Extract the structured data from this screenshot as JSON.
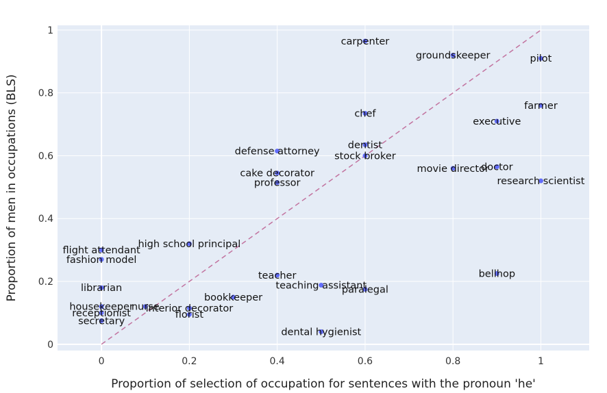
{
  "chart_data": {
    "type": "scatter",
    "xlabel": "Proportion of selection of occupation for sentences with the pronoun 'he'",
    "ylabel": "Proportion of men in occupations (BLS)",
    "xlim": [
      -0.1,
      1.11
    ],
    "ylim": [
      -0.02,
      1.015
    ],
    "x_ticks": [
      0,
      0.2,
      0.4,
      0.6,
      0.8,
      1
    ],
    "y_ticks": [
      0,
      0.2,
      0.4,
      0.6,
      0.8,
      1
    ],
    "x_tick_labels": [
      "0",
      "0.2",
      "0.4",
      "0.6",
      "0.8",
      "1"
    ],
    "y_tick_labels": [
      "0",
      "0.2",
      "0.4",
      "0.6",
      "0.8",
      "1"
    ],
    "grid": true,
    "background_color": "#e5ecf6",
    "marker_color": "#636efa",
    "reference_line": {
      "from": [
        0,
        0
      ],
      "to": [
        1,
        1
      ],
      "style": "dashed",
      "color": "#c2739f"
    },
    "points": [
      {
        "label": "carpenter",
        "x": 0.6,
        "y": 0.965
      },
      {
        "label": "groundskeeper",
        "x": 0.8,
        "y": 0.92
      },
      {
        "label": "pilot",
        "x": 1.0,
        "y": 0.91
      },
      {
        "label": "farmer",
        "x": 1.0,
        "y": 0.76
      },
      {
        "label": "executive",
        "x": 0.9,
        "y": 0.71
      },
      {
        "label": "chef",
        "x": 0.6,
        "y": 0.735
      },
      {
        "label": "dentist",
        "x": 0.6,
        "y": 0.635
      },
      {
        "label": "stock broker",
        "x": 0.6,
        "y": 0.6
      },
      {
        "label": "defense attorney",
        "x": 0.4,
        "y": 0.615
      },
      {
        "label": "cake decorator",
        "x": 0.4,
        "y": 0.545
      },
      {
        "label": "professor",
        "x": 0.4,
        "y": 0.515
      },
      {
        "label": "movie director",
        "x": 0.8,
        "y": 0.56
      },
      {
        "label": "doctor",
        "x": 0.9,
        "y": 0.565
      },
      {
        "label": "research scientist",
        "x": 1.0,
        "y": 0.52
      },
      {
        "label": "high school principal",
        "x": 0.2,
        "y": 0.32
      },
      {
        "label": "flight attendant",
        "x": 0.0,
        "y": 0.3
      },
      {
        "label": "fashion model",
        "x": 0.0,
        "y": 0.27
      },
      {
        "label": "librarian",
        "x": 0.0,
        "y": 0.18
      },
      {
        "label": "housekeeper",
        "x": 0.0,
        "y": 0.12
      },
      {
        "label": "receptionist",
        "x": 0.0,
        "y": 0.1
      },
      {
        "label": "secretary",
        "x": 0.0,
        "y": 0.075
      },
      {
        "label": "nurse",
        "x": 0.1,
        "y": 0.12
      },
      {
        "label": "interior decorator",
        "x": 0.2,
        "y": 0.115
      },
      {
        "label": "florist",
        "x": 0.2,
        "y": 0.095
      },
      {
        "label": "bookkeeper",
        "x": 0.3,
        "y": 0.15
      },
      {
        "label": "teacher",
        "x": 0.4,
        "y": 0.22
      },
      {
        "label": "teaching assistant",
        "x": 0.5,
        "y": 0.188
      },
      {
        "label": "paralegal",
        "x": 0.6,
        "y": 0.175
      },
      {
        "label": "dental hygienist",
        "x": 0.5,
        "y": 0.04
      },
      {
        "label": "bellhop",
        "x": 0.9,
        "y": 0.225
      }
    ]
  }
}
